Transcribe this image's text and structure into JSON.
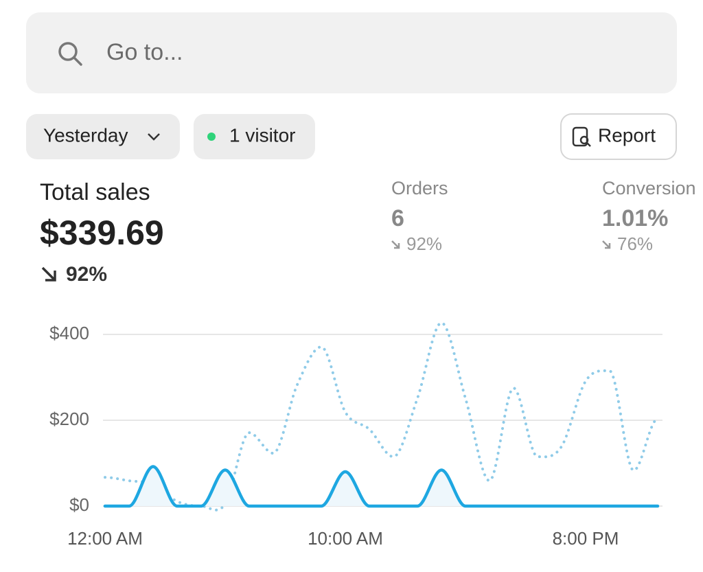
{
  "search": {
    "placeholder": "Go to..."
  },
  "filters": {
    "date": "Yesterday",
    "visitors": "1 visitor",
    "report": "Report"
  },
  "metrics": [
    {
      "label": "Total sales",
      "value": "$339.69",
      "change": "92%"
    },
    {
      "label": "Orders",
      "value": "6",
      "change": "92%"
    },
    {
      "label": "Conversion",
      "value": "1.01%",
      "change": "76%"
    }
  ],
  "chart_data": {
    "type": "line",
    "categories": [
      "12:00 AM",
      null,
      null,
      null,
      null,
      null,
      null,
      null,
      null,
      null,
      "10:00 AM",
      null,
      null,
      null,
      null,
      null,
      null,
      null,
      null,
      null,
      "8:00 PM",
      null,
      null,
      null
    ],
    "series": [
      {
        "color": "#8fcbe8",
        "style": "dotted",
        "values": [
          67,
          59,
          51,
          11,
          0,
          5,
          171,
          123,
          283,
          371,
          219,
          179,
          115,
          251,
          427,
          251,
          59,
          275,
          115,
          139,
          291,
          315,
          83,
          203
        ]
      },
      {
        "color": "#1ea7e1",
        "style": "solid",
        "area": "#eef7fc",
        "values": [
          0,
          0,
          92,
          0,
          0,
          84,
          0,
          0,
          0,
          0,
          80,
          0,
          0,
          0,
          84,
          0,
          0,
          0,
          0,
          0,
          0,
          0,
          0,
          0
        ]
      }
    ],
    "ylim": [
      0,
      440
    ],
    "yticks": [
      {
        "value": 0,
        "label": "$0"
      },
      {
        "value": 200,
        "label": "$200"
      },
      {
        "value": 400,
        "label": "$400"
      }
    ],
    "grid": true
  }
}
